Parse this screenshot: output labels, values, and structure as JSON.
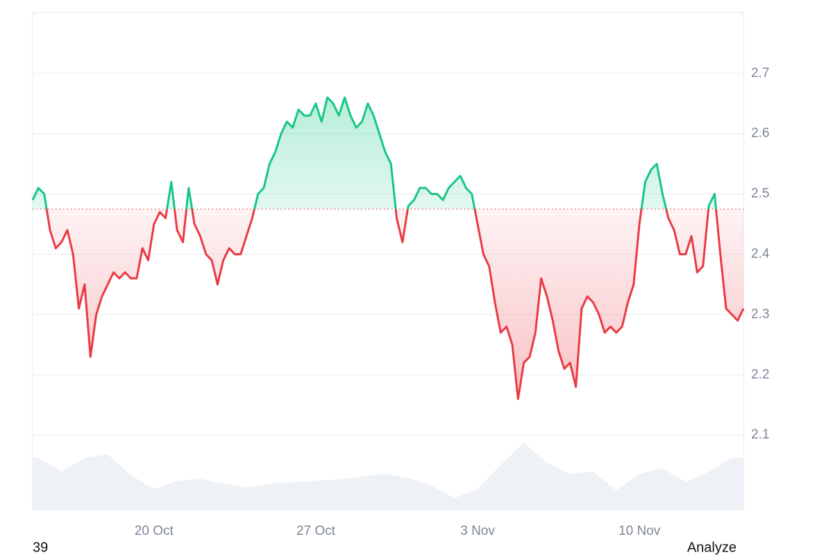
{
  "chart_data": {
    "type": "baseline-line",
    "up_color": "#16c784",
    "down_color": "#ea3943",
    "volume_color": "#eef1f5",
    "grid": true,
    "baseline": 2.475,
    "xlim": [
      14.75,
      45.5
    ],
    "ylim": [
      1.976,
      2.801
    ],
    "yticks": [
      2.1,
      2.2,
      2.3,
      2.4,
      2.5,
      2.6,
      2.7
    ],
    "xticks": [
      {
        "value": 20,
        "label": "20 Oct"
      },
      {
        "value": 27,
        "label": "27 Oct"
      },
      {
        "value": 34,
        "label": "3 Nov"
      },
      {
        "value": 41,
        "label": "10 Nov"
      }
    ],
    "x": [
      14.75,
      15,
      15.25,
      15.5,
      15.75,
      16,
      16.25,
      16.5,
      16.75,
      17,
      17.25,
      17.5,
      17.75,
      18,
      18.25,
      18.5,
      18.75,
      19,
      19.25,
      19.5,
      19.75,
      20,
      20.25,
      20.5,
      20.75,
      21,
      21.25,
      21.5,
      21.75,
      22,
      22.25,
      22.5,
      22.75,
      23,
      23.25,
      23.5,
      23.75,
      24,
      24.25,
      24.5,
      24.75,
      25,
      25.25,
      25.5,
      25.75,
      26,
      26.25,
      26.5,
      26.75,
      27,
      27.25,
      27.5,
      27.75,
      28,
      28.25,
      28.5,
      28.75,
      29,
      29.25,
      29.5,
      29.75,
      30,
      30.25,
      30.5,
      30.75,
      31,
      31.25,
      31.5,
      31.75,
      32,
      32.25,
      32.5,
      32.75,
      33,
      33.25,
      33.5,
      33.75,
      34,
      34.25,
      34.5,
      34.75,
      35,
      35.25,
      35.5,
      35.75,
      36,
      36.25,
      36.5,
      36.75,
      37,
      37.25,
      37.5,
      37.75,
      38,
      38.25,
      38.5,
      38.75,
      39,
      39.25,
      39.5,
      39.75,
      40,
      40.25,
      40.5,
      40.75,
      41,
      41.25,
      41.5,
      41.75,
      42,
      42.25,
      42.5,
      42.75,
      43,
      43.25,
      43.5,
      43.75,
      44,
      44.25,
      44.5,
      44.75,
      45,
      45.25,
      45.5
    ],
    "values": [
      2.49,
      2.51,
      2.5,
      2.44,
      2.41,
      2.42,
      2.44,
      2.4,
      2.31,
      2.35,
      2.23,
      2.3,
      2.33,
      2.35,
      2.37,
      2.36,
      2.37,
      2.36,
      2.36,
      2.41,
      2.39,
      2.45,
      2.47,
      2.46,
      2.52,
      2.44,
      2.42,
      2.51,
      2.45,
      2.43,
      2.4,
      2.39,
      2.35,
      2.39,
      2.41,
      2.4,
      2.4,
      2.43,
      2.46,
      2.5,
      2.51,
      2.55,
      2.57,
      2.6,
      2.62,
      2.61,
      2.64,
      2.63,
      2.63,
      2.65,
      2.62,
      2.66,
      2.65,
      2.63,
      2.66,
      2.63,
      2.61,
      2.62,
      2.65,
      2.63,
      2.6,
      2.57,
      2.55,
      2.46,
      2.42,
      2.48,
      2.49,
      2.51,
      2.51,
      2.5,
      2.5,
      2.49,
      2.51,
      2.52,
      2.53,
      2.51,
      2.5,
      2.45,
      2.4,
      2.38,
      2.32,
      2.27,
      2.28,
      2.25,
      2.16,
      2.22,
      2.23,
      2.27,
      2.36,
      2.33,
      2.29,
      2.24,
      2.21,
      2.22,
      2.18,
      2.31,
      2.33,
      2.32,
      2.3,
      2.27,
      2.28,
      2.27,
      2.28,
      2.32,
      2.35,
      2.45,
      2.52,
      2.54,
      2.55,
      2.5,
      2.46,
      2.44,
      2.4,
      2.4,
      2.43,
      2.37,
      2.38,
      2.48,
      2.5,
      2.4,
      2.31,
      2.3,
      2.29,
      2.31
    ],
    "volume": {
      "vlim": [
        0,
        100
      ],
      "x": [
        15,
        16,
        17,
        18,
        19,
        20,
        21,
        22,
        23,
        24,
        25,
        26,
        27,
        28,
        29,
        30,
        31,
        32,
        33,
        34,
        35,
        36,
        37,
        38,
        39,
        40,
        41,
        42,
        43,
        44,
        45
      ],
      "values": [
        75,
        55,
        75,
        80,
        50,
        30,
        42,
        45,
        38,
        32,
        38,
        40,
        42,
        44,
        48,
        52,
        46,
        35,
        17,
        30,
        65,
        97,
        68,
        52,
        55,
        28,
        52,
        60,
        40,
        55,
        75
      ]
    }
  },
  "footer": {
    "left": "39",
    "right": "Analyze"
  }
}
